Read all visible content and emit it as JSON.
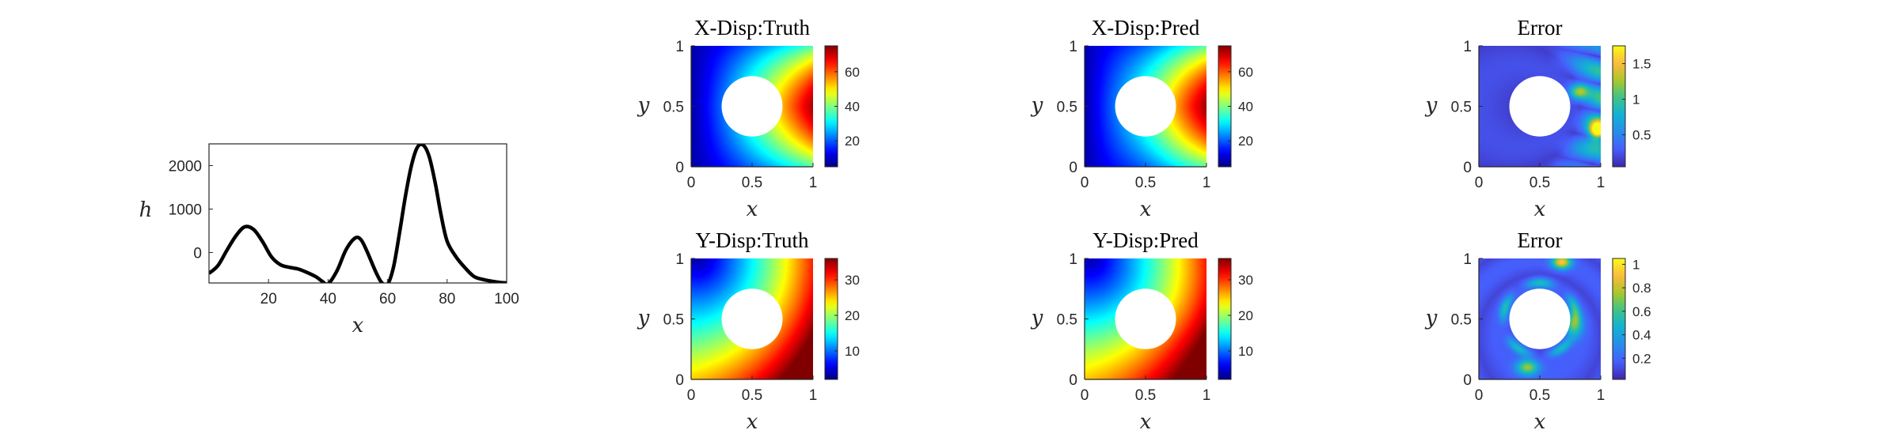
{
  "colors": {
    "curve": "#000000",
    "hole": "#ffffff",
    "axis": "#262626"
  },
  "chart_data": [
    {
      "type": "line",
      "xlabel": "x",
      "ylabel": "h",
      "xlim": [
        0,
        100
      ],
      "ylim": [
        -700,
        2500
      ],
      "xticks": [
        "20",
        "40",
        "60",
        "80",
        "100"
      ],
      "yticks": [
        "0",
        "1000",
        "2000"
      ],
      "x": [
        0,
        3,
        6,
        9,
        12,
        15,
        18,
        21,
        24,
        27,
        30,
        33,
        36,
        38,
        40,
        43,
        46,
        49,
        51,
        53,
        56,
        58,
        60,
        62,
        64,
        66,
        68,
        70,
        72,
        74,
        76,
        78,
        80,
        83,
        86,
        89,
        92,
        95,
        98,
        100
      ],
      "values": [
        -480,
        -300,
        50,
        380,
        590,
        530,
        250,
        -100,
        -280,
        -340,
        -380,
        -460,
        -560,
        -660,
        -720,
        -420,
        60,
        330,
        300,
        40,
        -440,
        -690,
        -730,
        -330,
        450,
        1300,
        2000,
        2420,
        2470,
        2200,
        1600,
        850,
        260,
        -100,
        -350,
        -550,
        -620,
        -660,
        -690,
        -700
      ],
      "grid": false
    },
    {
      "type": "heatmap",
      "field": "x_truth",
      "colormap": "jet",
      "title": "X-Disp:Truth",
      "xlabel": "x",
      "ylabel": "y",
      "xlim": [
        0,
        1
      ],
      "ylim": [
        0,
        1
      ],
      "xticks": [
        "0",
        "0.5",
        "1"
      ],
      "yticks": [
        "0",
        "0.5",
        "1"
      ],
      "hole": {
        "center": [
          0.5,
          0.5
        ],
        "radius": 0.25
      },
      "colorbar": {
        "range": [
          5,
          75
        ],
        "ticks": [
          "20",
          "40",
          "60"
        ]
      }
    },
    {
      "type": "heatmap",
      "field": "x_pred",
      "colormap": "jet",
      "title": "X-Disp:Pred",
      "xlabel": "x",
      "ylabel": "y",
      "xlim": [
        0,
        1
      ],
      "ylim": [
        0,
        1
      ],
      "xticks": [
        "0",
        "0.5",
        "1"
      ],
      "yticks": [
        "0",
        "0.5",
        "1"
      ],
      "hole": {
        "center": [
          0.5,
          0.5
        ],
        "radius": 0.25
      },
      "colorbar": {
        "range": [
          5,
          75
        ],
        "ticks": [
          "20",
          "40",
          "60"
        ]
      }
    },
    {
      "type": "heatmap",
      "field": "x_err",
      "colormap": "parula",
      "title": "Error",
      "xlabel": "x",
      "ylabel": "y",
      "xlim": [
        0,
        1
      ],
      "ylim": [
        0,
        1
      ],
      "xticks": [
        "0",
        "0.5",
        "1"
      ],
      "yticks": [
        "0",
        "0.5",
        "1"
      ],
      "hole": {
        "center": [
          0.5,
          0.5
        ],
        "radius": 0.25
      },
      "colorbar": {
        "range": [
          0.05,
          1.75
        ],
        "ticks": [
          "0.5",
          "1",
          "1.5"
        ]
      }
    },
    {
      "type": "heatmap",
      "field": "y_truth",
      "colormap": "jet",
      "title": "Y-Disp:Truth",
      "xlabel": "x",
      "ylabel": "y",
      "xlim": [
        0,
        1
      ],
      "ylim": [
        0,
        1
      ],
      "xticks": [
        "0",
        "0.5",
        "1"
      ],
      "yticks": [
        "0",
        "0.5",
        "1"
      ],
      "hole": {
        "center": [
          0.5,
          0.5
        ],
        "radius": 0.25
      },
      "colorbar": {
        "range": [
          2,
          36
        ],
        "ticks": [
          "10",
          "20",
          "30"
        ]
      }
    },
    {
      "type": "heatmap",
      "field": "y_pred",
      "colormap": "jet",
      "title": "Y-Disp:Pred",
      "xlabel": "x",
      "ylabel": "y",
      "xlim": [
        0,
        1
      ],
      "ylim": [
        0,
        1
      ],
      "xticks": [
        "0",
        "0.5",
        "1"
      ],
      "yticks": [
        "0",
        "0.5",
        "1"
      ],
      "hole": {
        "center": [
          0.5,
          0.5
        ],
        "radius": 0.25
      },
      "colorbar": {
        "range": [
          2,
          36
        ],
        "ticks": [
          "10",
          "20",
          "30"
        ]
      }
    },
    {
      "type": "heatmap",
      "field": "y_err",
      "colormap": "parula",
      "title": "Error",
      "xlabel": "x",
      "ylabel": "y",
      "xlim": [
        0,
        1
      ],
      "ylim": [
        0,
        1
      ],
      "xticks": [
        "0",
        "0.5",
        "1"
      ],
      "yticks": [
        "0",
        "0.5",
        "1"
      ],
      "hole": {
        "center": [
          0.5,
          0.5
        ],
        "radius": 0.25
      },
      "colorbar": {
        "range": [
          0.02,
          1.05
        ],
        "ticks": [
          "0.2",
          "0.4",
          "0.6",
          "0.8",
          "1"
        ]
      }
    }
  ]
}
